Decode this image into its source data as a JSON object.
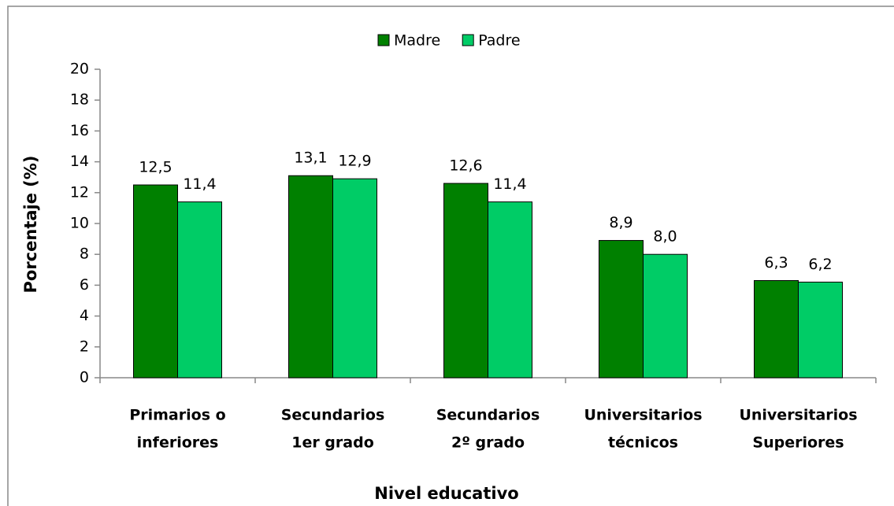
{
  "chart_data": {
    "type": "bar",
    "categories": [
      [
        "Primarios o",
        "inferiores"
      ],
      [
        "Secundarios",
        "1er grado"
      ],
      [
        "Secundarios",
        "2º grado"
      ],
      [
        "Universitarios",
        "técnicos"
      ],
      [
        "Universitarios",
        "Superiores"
      ]
    ],
    "series": [
      {
        "name": "Madre",
        "color": "#008000",
        "values": [
          12.5,
          13.1,
          12.6,
          8.9,
          6.3
        ],
        "value_labels": [
          "12,5",
          "13,1",
          "12,6",
          "8,9",
          "6,3"
        ]
      },
      {
        "name": "Padre",
        "color": "#00cc66",
        "values": [
          11.4,
          12.9,
          11.4,
          8.0,
          6.2
        ],
        "value_labels": [
          "11,4",
          "12,9",
          "11,4",
          "8,0",
          "6,2"
        ]
      }
    ],
    "ylabel": "Porcentaje (%)",
    "xlabel": "Nivel educativo",
    "ylim": [
      0,
      20
    ],
    "yticks": [
      0,
      2,
      4,
      6,
      8,
      10,
      12,
      14,
      16,
      18,
      20
    ],
    "legend": "top"
  }
}
